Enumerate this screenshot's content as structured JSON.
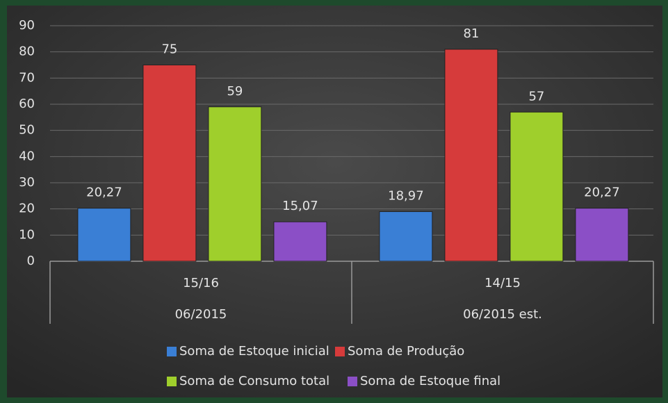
{
  "chart_data": {
    "type": "bar",
    "categories": [
      "15/16",
      "14/15"
    ],
    "category_groups": [
      "06/2015",
      "06/2015 est."
    ],
    "series": [
      {
        "name": "Soma de Estoque inicial",
        "color": "#3a7fd5",
        "values": [
          20.27,
          18.97
        ],
        "value_labels": [
          "20,27",
          "18,97"
        ]
      },
      {
        "name": "Soma de Produção",
        "color": "#d63b3b",
        "values": [
          75,
          81
        ]
      },
      {
        "name": "Soma de Consumo total",
        "color": "#9fcf2c",
        "values": [
          59,
          57
        ]
      },
      {
        "name": "Soma de Estoque final",
        "color": "#8b4fc6",
        "values": [
          15.07,
          20.27
        ],
        "value_labels": [
          "15,07",
          "20,27"
        ]
      }
    ],
    "ylim": [
      0,
      90
    ],
    "yticks": [
      0,
      10,
      20,
      30,
      40,
      50,
      60,
      70,
      80,
      90
    ],
    "grid": true
  }
}
